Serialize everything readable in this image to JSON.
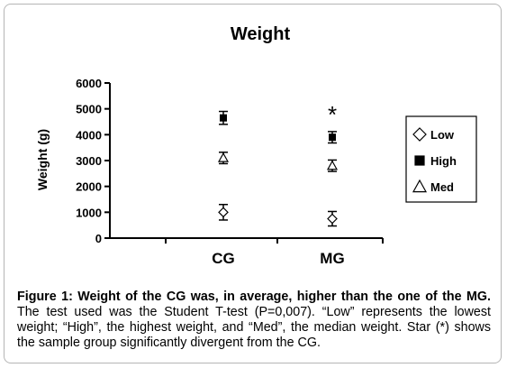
{
  "chart_data": {
    "type": "scatter",
    "title": "Weight",
    "ylabel": "Weight (g)",
    "xlabel": "",
    "categories": [
      "CG",
      "MG"
    ],
    "ylim": [
      0,
      6000
    ],
    "yticks": [
      0,
      1000,
      2000,
      3000,
      4000,
      5000,
      6000
    ],
    "legend_position": "right",
    "series": [
      {
        "name": "Low",
        "marker": "diamond",
        "values": [
          1000,
          750
        ],
        "error": [
          300,
          280
        ]
      },
      {
        "name": "High",
        "marker": "square",
        "values": [
          4650,
          3900
        ],
        "error": [
          250,
          220
        ]
      },
      {
        "name": "Med",
        "marker": "triangle",
        "values": [
          3100,
          2800
        ],
        "error": [
          220,
          220
        ]
      }
    ],
    "annotations": [
      {
        "category": "MG",
        "text": "*"
      }
    ]
  },
  "caption": {
    "lead": "Figure 1: Weight of the CG was, in average, higher than the one of the MG.",
    "body": " The test used was the Student T-test (P=0,007). “Low” represents the lowest weight; “High”, the highest weight, and “Med”, the median weight. Star (*) shows the sample group significantly divergent from the CG."
  }
}
